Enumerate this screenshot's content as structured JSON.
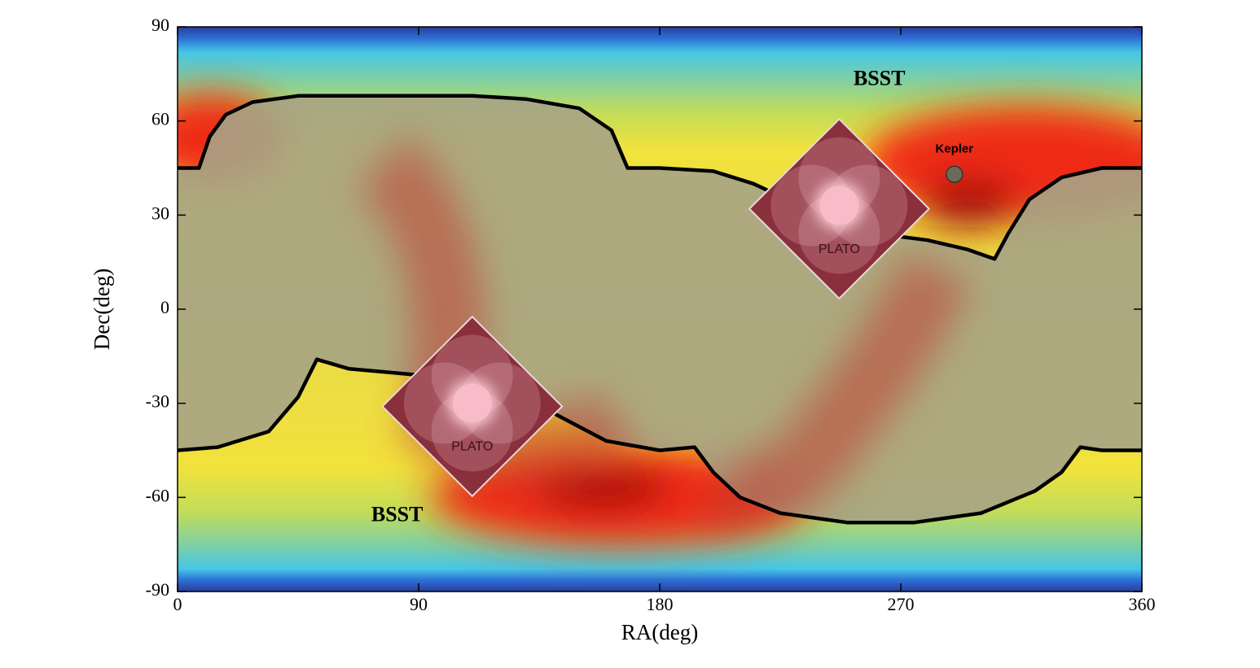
{
  "chart_data": {
    "type": "line",
    "xlabel": "RA(deg)",
    "ylabel": "Dec(deg)",
    "xlim": [
      0,
      360
    ],
    "ylim": [
      -90,
      90
    ],
    "xticks": [
      0,
      90,
      180,
      270,
      360
    ],
    "yticks": [
      -90,
      -60,
      -30,
      0,
      30,
      60,
      90
    ],
    "series": [
      {
        "color": "#000000",
        "x": [
          0,
          8,
          12,
          18,
          28,
          45,
          80,
          110,
          130,
          150,
          162,
          168,
          180,
          200,
          215,
          230,
          245,
          262,
          280,
          295,
          305,
          310,
          318,
          330,
          345,
          360
        ],
        "values": [
          45,
          45,
          55,
          62,
          66,
          68,
          68,
          68,
          67,
          64,
          57,
          45,
          45,
          44,
          40,
          34,
          29,
          24,
          22,
          19,
          16,
          24,
          35,
          42,
          45,
          45
        ]
      },
      {
        "color": "#000000",
        "x": [
          0,
          15,
          34,
          45,
          52,
          64,
          90,
          116,
          130,
          140,
          160,
          180,
          193,
          200,
          210,
          225,
          250,
          275,
          300,
          320,
          330,
          337,
          345,
          360
        ],
        "values": [
          -45,
          -44,
          -39,
          -28,
          -16,
          -19,
          -21,
          -18,
          -25,
          -33,
          -42,
          -45,
          -44,
          -52,
          -60,
          -65,
          -68,
          -68,
          -65,
          -58,
          -52,
          -44,
          -45,
          -45
        ]
      }
    ],
    "annotations": [
      {
        "text": "BSST",
        "x": 262,
        "y": 73
      },
      {
        "text": "BSST",
        "x": 82,
        "y": -66
      },
      {
        "text": "Kepler",
        "x": 290,
        "y": 51
      }
    ],
    "kepler_field": {
      "x": 290,
      "y": 43
    },
    "plato_fields": [
      {
        "label": "PLATO",
        "x": 247,
        "y": 32
      },
      {
        "label": "PLATO",
        "x": 110,
        "y": -31
      }
    ]
  }
}
